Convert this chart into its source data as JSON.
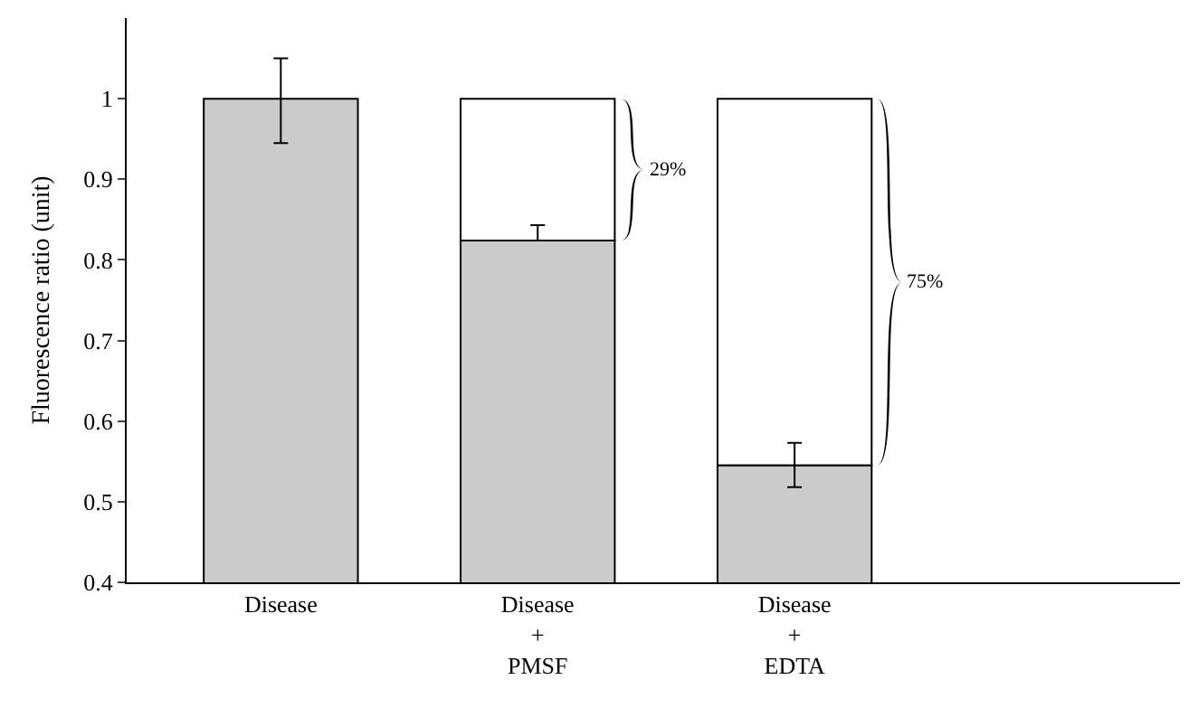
{
  "chart_data": {
    "type": "bar",
    "ylabel": "Fluorescence ratio (unit)",
    "categories": [
      "Disease",
      "Disease\n+\nPMSF",
      "Disease\n+\nEDTA"
    ],
    "series": [
      {
        "color": "#ffffff",
        "values": [
          null,
          0.176,
          0.455
        ],
        "base": [
          null,
          0.824,
          0.545
        ]
      },
      {
        "color": "#cbcbcb",
        "values": [
          1.0,
          0.824,
          0.545
        ],
        "errors": [
          [
            0.945,
            1.05
          ],
          [
            0.824,
            0.843
          ],
          [
            0.518,
            0.573
          ]
        ]
      }
    ],
    "ylim": [
      0.4,
      1.1
    ],
    "yticks": [
      0.4,
      0.5,
      0.6,
      0.7,
      0.8,
      0.9,
      1
    ],
    "annotations": [
      "29%",
      "75%"
    ]
  }
}
